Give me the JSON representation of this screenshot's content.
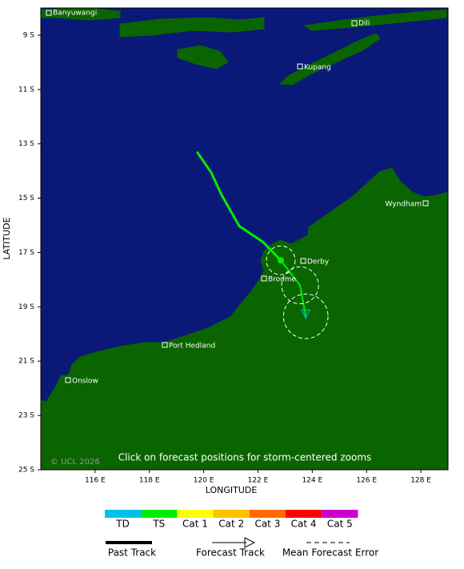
{
  "map": {
    "xlabel": "LONGITUDE",
    "ylabel": "LATITUDE",
    "xlim": [
      114,
      129
    ],
    "ylim": [
      -25,
      -8
    ],
    "xticks": [
      {
        "value": 116,
        "label": "116 E"
      },
      {
        "value": 118,
        "label": "118 E"
      },
      {
        "value": 120,
        "label": "120 E"
      },
      {
        "value": 122,
        "label": "122 E"
      },
      {
        "value": 124,
        "label": "124 E"
      },
      {
        "value": 126,
        "label": "126 E"
      },
      {
        "value": 128,
        "label": "128 E"
      }
    ],
    "yticks": [
      {
        "value": -9,
        "label": "9 S"
      },
      {
        "value": -11,
        "label": "11 S"
      },
      {
        "value": -13,
        "label": "13 S"
      },
      {
        "value": -15,
        "label": "15 S"
      },
      {
        "value": -17,
        "label": "17 S"
      },
      {
        "value": -19,
        "label": "19 S"
      },
      {
        "value": -21,
        "label": "21 S"
      },
      {
        "value": -23,
        "label": "23 S"
      },
      {
        "value": -25,
        "label": "25 S"
      }
    ],
    "towns": [
      "Banyuwangi",
      "Dili",
      "Kupang",
      "Wyndham",
      "Derby",
      "Broome",
      "Port Hedland",
      "Onslow"
    ],
    "caption": "Click on forecast positions for storm-centered zooms",
    "copyright": "© UCL 2026",
    "past_track": {
      "color": "#00ee00",
      "lon": [
        119.75,
        120.28,
        120.66,
        121.31,
        122.19,
        122.84
      ],
      "lat": [
        -13.29,
        -14.06,
        -14.88,
        -16.03,
        -16.62,
        -17.29
      ]
    },
    "forecast_track": {
      "color": "#00ee00",
      "lon": [
        122.84,
        123.55,
        123.76
      ],
      "lat": [
        -17.29,
        -18.21,
        -19.35
      ],
      "error_radius": [
        0.53,
        0.68,
        0.82
      ]
    }
  },
  "legend": {
    "scale": [
      {
        "name": "TD",
        "color": "#00c0f0"
      },
      {
        "name": "TS",
        "color": "#00ee00"
      },
      {
        "name": "Cat 1",
        "color": "#ffff00"
      },
      {
        "name": "Cat 2",
        "color": "#ffc000"
      },
      {
        "name": "Cat 3",
        "color": "#ff6a00"
      },
      {
        "name": "Cat 4",
        "color": "#ff0000"
      },
      {
        "name": "Cat 5",
        "color": "#cc00cc"
      }
    ],
    "past_track": "Past Track",
    "forecast_track": "Forecast Track",
    "error": "Mean Forecast Error"
  }
}
